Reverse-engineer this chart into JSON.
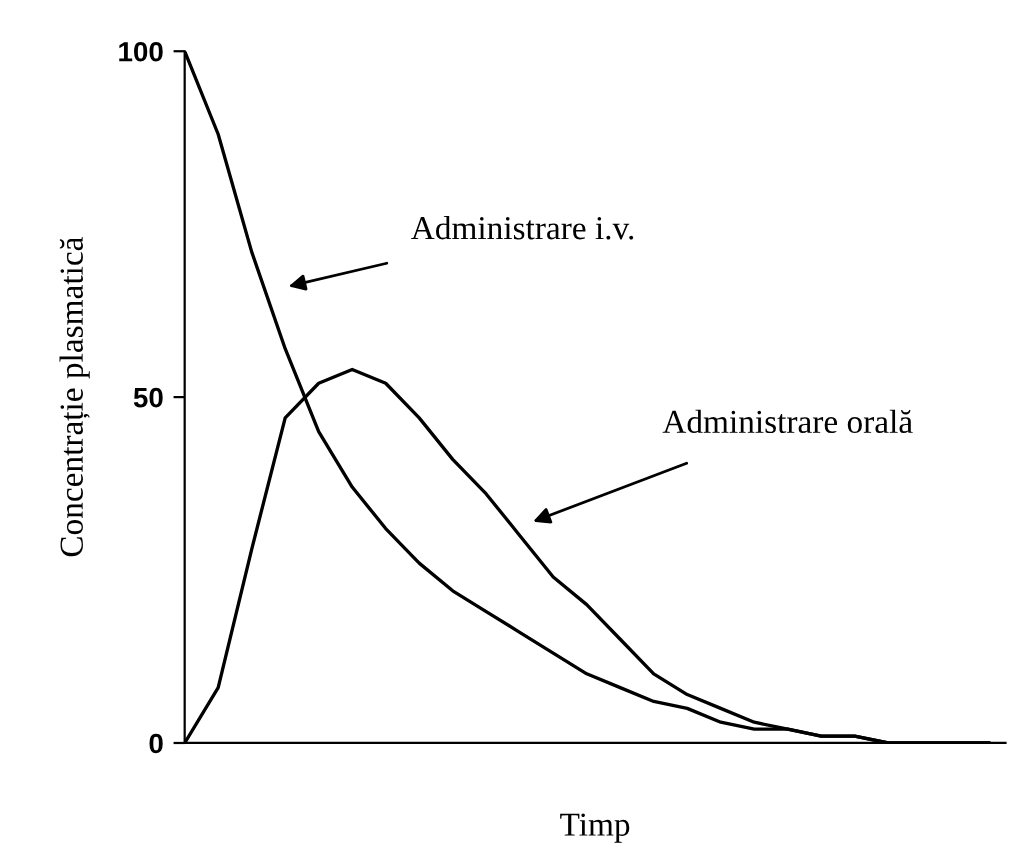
{
  "chart_data": {
    "type": "line",
    "xlabel": "Timp",
    "ylabel": "Concentrație plasmatică",
    "categories": [
      null,
      null,
      null,
      null,
      null,
      null,
      null,
      null,
      null,
      null,
      null,
      null,
      null,
      null,
      null,
      null,
      null,
      null,
      null,
      null,
      null,
      null,
      null,
      null,
      null
    ],
    "series": [
      {
        "color": "#000000",
        "values": [
          100,
          88,
          71,
          57,
          45,
          37,
          31,
          26,
          22,
          19,
          16,
          13,
          10,
          8,
          6,
          5,
          3,
          2,
          2,
          1,
          1,
          0,
          0,
          0,
          0
        ]
      },
      {
        "color": "#000000",
        "values": [
          0,
          8,
          28,
          47,
          52,
          54,
          52,
          47,
          41,
          36,
          30,
          24,
          20,
          15,
          10,
          7,
          5,
          3,
          2,
          1,
          1,
          0,
          0,
          0,
          0
        ]
      }
    ],
    "annotations": [
      "Administrare i.v.",
      "Administrare orală"
    ],
    "ylim": [
      0,
      100
    ],
    "yticks": [
      0,
      50,
      100
    ],
    "tick_labels": "y",
    "grid": false,
    "legend": false,
    "marker": "none",
    "line_style": "solid"
  }
}
